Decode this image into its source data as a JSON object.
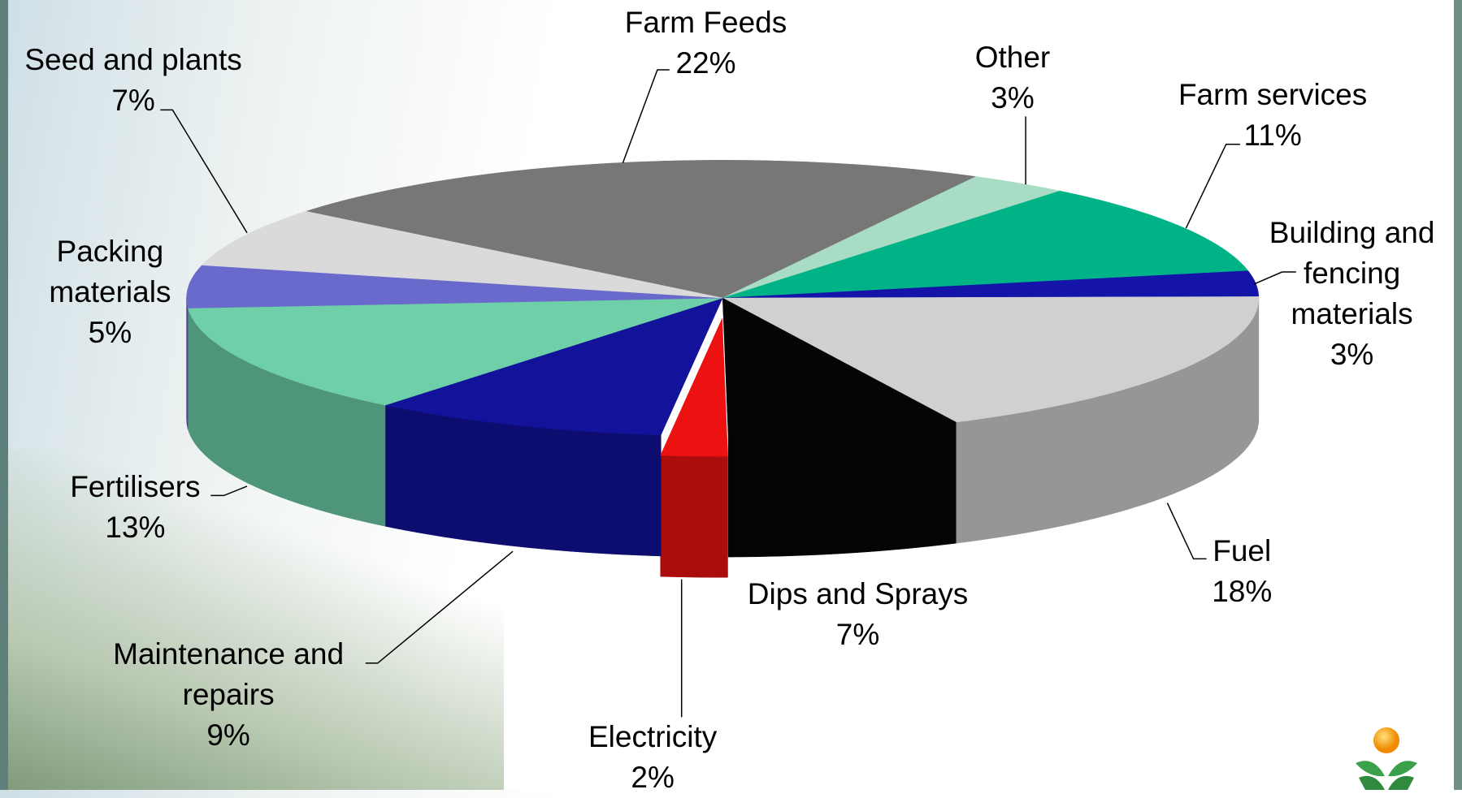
{
  "chart_data": {
    "type": "pie",
    "categories": [
      "Farm Feeds",
      "Other",
      "Farm services",
      "Building and fencing materials",
      "Fuel",
      "Dips and Sprays",
      "Electricity",
      "Maintenance and repairs",
      "Fertilisers",
      "Packing materials",
      "Seed and plants"
    ],
    "values": [
      22,
      3,
      11,
      3,
      18,
      7,
      2,
      9,
      13,
      5,
      7
    ],
    "value_labels": [
      "22%",
      "3%",
      "11%",
      "3%",
      "18%",
      "7%",
      "2%",
      "9%",
      "13%",
      "5%",
      "7%"
    ],
    "colors": [
      "#777777",
      "#a9dcc4",
      "#00b386",
      "#1414a8",
      "#d0d0d0",
      "#050505",
      "#ee1111",
      "#12129a",
      "#6ecfa8",
      "#6a6acc",
      "#dadada"
    ],
    "exploded": [
      6
    ]
  }
}
